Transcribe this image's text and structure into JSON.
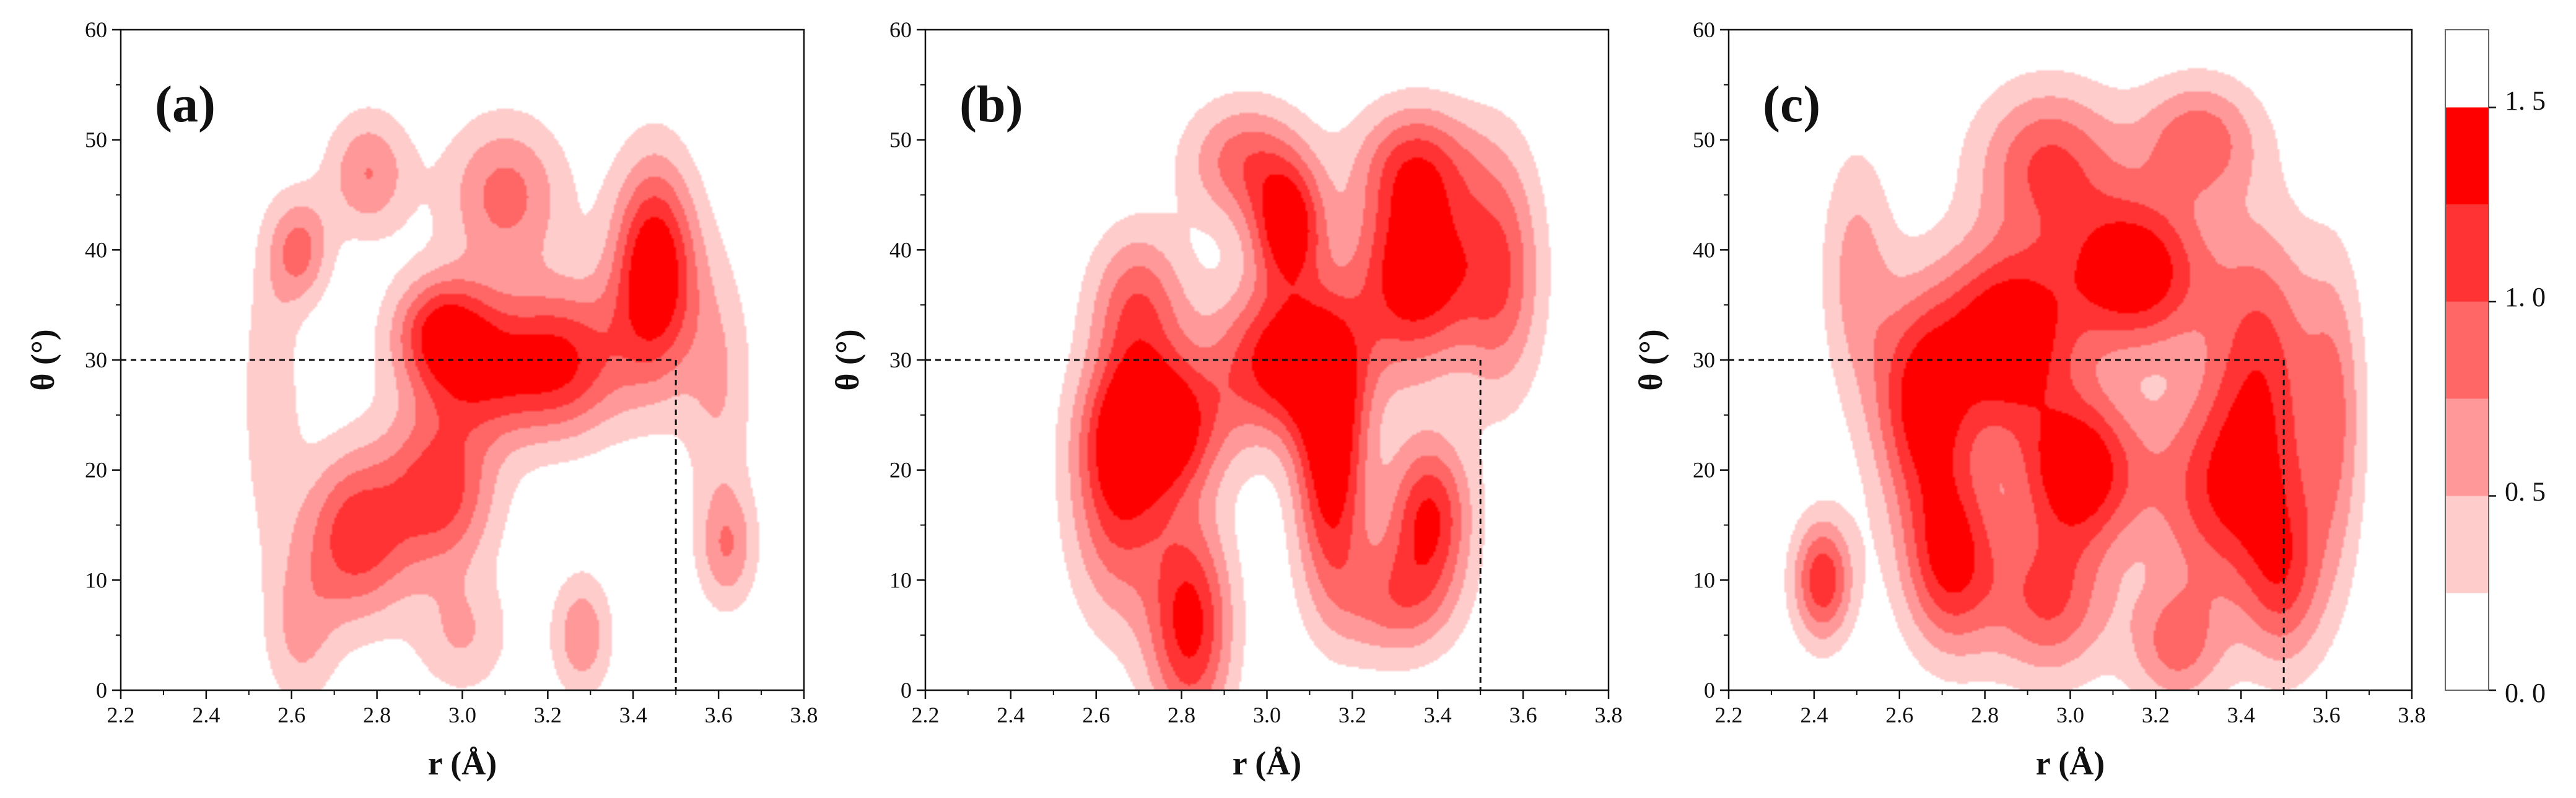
{
  "chart_data": {
    "type": "contour",
    "levels": [
      0,
      0.25,
      0.5,
      0.75,
      1.0,
      1.25,
      1.5,
      1.7
    ],
    "level_colors": [
      "#ffffff",
      "#ffcccc",
      "#ff9999",
      "#ff6666",
      "#ff3333",
      "#ff0000"
    ],
    "colorbar": {
      "ticks": [
        0.0,
        0.5,
        1.0,
        1.5
      ],
      "tick_labels": [
        "0. 0",
        "0. 5",
        "1. 0",
        "1. 5"
      ]
    },
    "xlabel": "r (Å)",
    "ylabel": "θ (°)",
    "xlim": [
      2.2,
      3.8
    ],
    "ylim": [
      0,
      60
    ],
    "xticks": [
      2.2,
      2.4,
      2.6,
      2.8,
      3.0,
      3.2,
      3.4,
      3.6,
      3.8
    ],
    "xtick_labels": [
      "2.2",
      "2.4",
      "2.6",
      "2.8",
      "3.0",
      "3.2",
      "3.4",
      "3.6",
      "3.8"
    ],
    "yticks": [
      0,
      10,
      20,
      30,
      40,
      50,
      60
    ],
    "ytick_labels": [
      "0",
      "10",
      "20",
      "30",
      "40",
      "50",
      "60"
    ],
    "cutoff": {
      "r": 3.5,
      "theta": 30
    },
    "panels": [
      {
        "label": "(a)",
        "peaks": [
          {
            "r": 2.55,
            "theta": 27,
            "amp": 0.45,
            "sr": 0.05,
            "st": 10
          },
          {
            "r": 2.75,
            "theta": 14,
            "amp": 1.15,
            "sr": 0.09,
            "st": 5.5
          },
          {
            "r": 2.95,
            "theta": 18,
            "amp": 1.1,
            "sr": 0.09,
            "st": 5
          },
          {
            "r": 3.05,
            "theta": 29,
            "amp": 1.1,
            "sr": 0.12,
            "st": 4.5
          },
          {
            "r": 2.95,
            "theta": 33,
            "amp": 1.0,
            "sr": 0.08,
            "st": 3.5
          },
          {
            "r": 3.45,
            "theta": 38,
            "amp": 1.6,
            "sr": 0.07,
            "st": 7
          },
          {
            "r": 3.25,
            "theta": 30,
            "amp": 1.05,
            "sr": 0.1,
            "st": 5
          },
          {
            "r": 2.62,
            "theta": 40,
            "amp": 0.8,
            "sr": 0.05,
            "st": 3.5
          },
          {
            "r": 2.78,
            "theta": 47,
            "amp": 0.75,
            "sr": 0.07,
            "st": 4
          },
          {
            "r": 3.1,
            "theta": 45,
            "amp": 0.85,
            "sr": 0.1,
            "st": 5
          },
          {
            "r": 3.28,
            "theta": 5,
            "amp": 0.7,
            "sr": 0.05,
            "st": 4
          },
          {
            "r": 3.62,
            "theta": 13,
            "amp": 0.7,
            "sr": 0.05,
            "st": 4
          },
          {
            "r": 3.6,
            "theta": 28,
            "amp": 0.5,
            "sr": 0.06,
            "st": 8
          },
          {
            "r": 2.62,
            "theta": 5,
            "amp": 0.5,
            "sr": 0.06,
            "st": 5
          },
          {
            "r": 3.0,
            "theta": 5,
            "amp": 0.5,
            "sr": 0.08,
            "st": 4
          }
        ]
      },
      {
        "label": "(b)",
        "peaks": [
          {
            "r": 2.75,
            "theta": 24,
            "amp": 1.5,
            "sr": 0.1,
            "st": 4.5
          },
          {
            "r": 3.05,
            "theta": 30,
            "amp": 1.5,
            "sr": 0.12,
            "st": 5
          },
          {
            "r": 3.15,
            "theta": 20,
            "amp": 1.45,
            "sr": 0.06,
            "st": 8
          },
          {
            "r": 3.35,
            "theta": 38,
            "amp": 1.55,
            "sr": 0.1,
            "st": 6
          },
          {
            "r": 3.05,
            "theta": 42,
            "amp": 1.35,
            "sr": 0.06,
            "st": 4
          },
          {
            "r": 2.82,
            "theta": 6,
            "amp": 1.35,
            "sr": 0.07,
            "st": 7
          },
          {
            "r": 3.38,
            "theta": 16,
            "amp": 1.25,
            "sr": 0.07,
            "st": 5
          },
          {
            "r": 2.65,
            "theta": 18,
            "amp": 1.1,
            "sr": 0.08,
            "st": 8
          },
          {
            "r": 3.55,
            "theta": 38,
            "amp": 0.9,
            "sr": 0.07,
            "st": 8
          },
          {
            "r": 2.95,
            "theta": 48,
            "amp": 0.9,
            "sr": 0.1,
            "st": 4
          },
          {
            "r": 3.35,
            "theta": 48,
            "amp": 0.9,
            "sr": 0.1,
            "st": 4
          },
          {
            "r": 3.3,
            "theta": 8,
            "amp": 0.8,
            "sr": 0.1,
            "st": 4
          },
          {
            "r": 2.7,
            "theta": 35,
            "amp": 0.9,
            "sr": 0.08,
            "st": 5
          }
        ]
      },
      {
        "label": "(c)",
        "peaks": [
          {
            "r": 2.85,
            "theta": 32,
            "amp": 1.6,
            "sr": 0.11,
            "st": 6
          },
          {
            "r": 3.15,
            "theta": 38,
            "amp": 1.55,
            "sr": 0.12,
            "st": 5
          },
          {
            "r": 3.02,
            "theta": 20,
            "amp": 1.5,
            "sr": 0.1,
            "st": 5
          },
          {
            "r": 2.72,
            "theta": 12,
            "amp": 1.3,
            "sr": 0.08,
            "st": 6
          },
          {
            "r": 2.65,
            "theta": 26,
            "amp": 1.3,
            "sr": 0.08,
            "st": 7
          },
          {
            "r": 2.42,
            "theta": 10,
            "amp": 1.2,
            "sr": 0.05,
            "st": 4
          },
          {
            "r": 3.35,
            "theta": 18,
            "amp": 1.1,
            "sr": 0.12,
            "st": 7
          },
          {
            "r": 3.45,
            "theta": 30,
            "amp": 1.0,
            "sr": 0.09,
            "st": 9
          },
          {
            "r": 3.5,
            "theta": 10,
            "amp": 0.9,
            "sr": 0.07,
            "st": 6
          },
          {
            "r": 2.95,
            "theta": 8,
            "amp": 1.0,
            "sr": 0.1,
            "st": 5
          },
          {
            "r": 2.95,
            "theta": 48,
            "amp": 1.0,
            "sr": 0.12,
            "st": 5
          },
          {
            "r": 3.3,
            "theta": 50,
            "amp": 0.9,
            "sr": 0.1,
            "st": 4
          },
          {
            "r": 2.5,
            "theta": 38,
            "amp": 0.6,
            "sr": 0.06,
            "st": 8
          },
          {
            "r": 3.25,
            "theta": 4,
            "amp": 0.8,
            "sr": 0.08,
            "st": 4
          },
          {
            "r": 3.62,
            "theta": 25,
            "amp": 0.7,
            "sr": 0.05,
            "st": 10
          }
        ]
      }
    ]
  }
}
